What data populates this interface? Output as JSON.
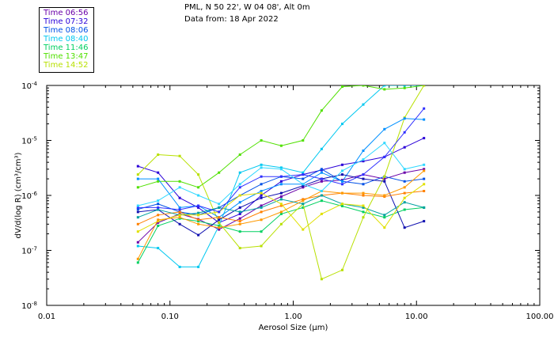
{
  "header": {
    "station": "PML, N 50 22', W 04 08', Alt 0m",
    "date_line": "Data from: 18 Apr 2022"
  },
  "chart_data": {
    "type": "line",
    "title": "PML, N 50 22', W 04 08', Alt 0m",
    "subtitle": "Data from: 18 Apr 2022",
    "xlabel": "Aerosol Size (µm)",
    "ylabel": "dV/d(log R) (cm³/cm³)",
    "xscale": "log",
    "yscale": "log",
    "xlim": [
      0.01,
      100
    ],
    "ylim": [
      1e-08,
      0.0001
    ],
    "legend_position": "top-left outside",
    "x_ticks": [
      {
        "value": 0.01,
        "label": "0.01"
      },
      {
        "value": 0.1,
        "label": "0.10"
      },
      {
        "value": 1,
        "label": "1.00"
      },
      {
        "value": 10,
        "label": "10.00"
      },
      {
        "value": 100,
        "label": "100.00"
      }
    ],
    "y_ticks": [
      {
        "value": 0.0001,
        "base": "10",
        "exp": "-4"
      },
      {
        "value": 1e-05,
        "base": "10",
        "exp": "-5"
      },
      {
        "value": 1e-06,
        "base": "10",
        "exp": "-6"
      },
      {
        "value": 1e-07,
        "base": "10",
        "exp": "-7"
      },
      {
        "value": 1e-08,
        "base": "10",
        "exp": "-8"
      }
    ],
    "x": [
      0.055,
      0.08,
      0.12,
      0.17,
      0.25,
      0.37,
      0.55,
      0.8,
      1.2,
      1.7,
      2.5,
      3.7,
      5.5,
      8.0,
      11.5
    ],
    "series": [
      {
        "name": "Time 06:56",
        "color": "#6a00a8",
        "values": [
          1.4e-07,
          3.2e-07,
          4.6e-07,
          3.7e-07,
          2.4e-07,
          3.8e-07,
          6.5e-07,
          9.5e-07,
          1.4e-06,
          1.8e-06,
          1.9e-06,
          2.4e-06,
          2e-06,
          2.6e-06,
          3e-06
        ]
      },
      {
        "name": "Time 07:32",
        "color": "#2a00d8",
        "values": [
          3.4e-06,
          2.6e-06,
          9e-07,
          6e-07,
          3.2e-07,
          4.6e-07,
          1e-06,
          1.8e-06,
          2.4e-06,
          2.9e-06,
          3.6e-06,
          4.2e-06,
          5e-06,
          7.5e-06,
          1.1e-05
        ]
      },
      {
        "name": "Time 08:06",
        "color": "#0050e6",
        "values": [
          5.6e-07,
          7e-07,
          5e-07,
          4.4e-07,
          6e-07,
          1e-06,
          1.6e-06,
          2.2e-06,
          2e-06,
          3e-06,
          1.8e-06,
          1.6e-06,
          2.2e-06,
          1.8e-06,
          2e-06
        ]
      },
      {
        "name": "Time 08:40",
        "color": "#00c8f0",
        "values": [
          1.2e-07,
          1.1e-07,
          5e-08,
          5e-08,
          2.8e-07,
          2.6e-06,
          3.6e-06,
          3.2e-06,
          2.6e-06,
          7e-06,
          2e-05,
          4.5e-05,
          0.0001,
          0.0001,
          0.0001
        ]
      },
      {
        "name": "Time 11:46",
        "color": "#00d060",
        "values": [
          6e-08,
          2.8e-07,
          3.8e-07,
          3.4e-07,
          2.8e-07,
          2.2e-07,
          2.2e-07,
          4.6e-07,
          6e-07,
          8e-07,
          6.4e-07,
          5e-07,
          4e-07,
          5.5e-07,
          6e-07
        ]
      },
      {
        "name": "Time 13:47",
        "color": "#50e000",
        "values": [
          1.4e-06,
          1.8e-06,
          1.8e-06,
          1.4e-06,
          2.6e-06,
          5.5e-06,
          1e-05,
          8e-06,
          1e-05,
          3.5e-05,
          9.5e-05,
          0.0001,
          8.5e-05,
          9e-05,
          0.0001
        ]
      },
      {
        "name": "Time 14:52",
        "color": "#b8e000",
        "values": [
          2.4e-06,
          5.5e-06,
          5.2e-06,
          2.4e-06,
          3.2e-07,
          1.1e-07,
          1.2e-07,
          3e-07,
          7e-07,
          3e-08,
          4.4e-08,
          4e-07,
          2.2e-06,
          2.6e-05,
          0.0001
        ]
      },
      {
        "name": "",
        "color": "#0090ff",
        "values": [
          2e-06,
          2e-06,
          6e-07,
          6.5e-07,
          4e-07,
          7.5e-07,
          1.2e-06,
          1.6e-06,
          1.6e-06,
          2.6e-06,
          1.8e-06,
          6.5e-06,
          1.6e-05,
          2.5e-05,
          2.4e-05
        ]
      },
      {
        "name": "",
        "color": "#1010b0",
        "values": [
          5e-07,
          5.5e-07,
          3e-07,
          1.9e-07,
          3.6e-07,
          6e-07,
          9e-07,
          1.1e-06,
          1.5e-06,
          2e-06,
          2.4e-06,
          2e-06,
          1.8e-06,
          2.6e-07,
          3.4e-07
        ]
      },
      {
        "name": "",
        "color": "#ff8000",
        "values": [
          3e-07,
          4.4e-07,
          5e-07,
          3.6e-07,
          4e-07,
          3.4e-07,
          5e-07,
          6.5e-07,
          8.5e-07,
          1e-06,
          1.1e-06,
          1e-06,
          9.5e-07,
          1.1e-06,
          1.2e-06
        ]
      },
      {
        "name": "",
        "color": "#00a0a0",
        "values": [
          4e-07,
          5.5e-07,
          4.4e-07,
          4.8e-07,
          6e-07,
          5e-07,
          6e-07,
          8.5e-07,
          7e-07,
          1e-06,
          7e-07,
          6e-07,
          4.4e-07,
          7.5e-07,
          6e-07
        ]
      },
      {
        "name": "",
        "color": "#e0e000",
        "values": [
          2.2e-07,
          3.4e-07,
          4.4e-07,
          4.4e-07,
          5e-07,
          1e-06,
          1.1e-06,
          7e-07,
          2.4e-07,
          4.6e-07,
          7e-07,
          6.5e-07,
          2.6e-07,
          9e-07,
          1.6e-06
        ]
      },
      {
        "name": "",
        "color": "#3030ff",
        "values": [
          6e-07,
          6e-07,
          5.5e-07,
          6.5e-07,
          5e-07,
          1.4e-06,
          2.2e-06,
          2.2e-06,
          2.4e-06,
          2e-06,
          1.6e-06,
          2.4e-06,
          5e-06,
          1.4e-05,
          3.8e-05
        ]
      },
      {
        "name": "",
        "color": "#ff9900",
        "values": [
          7e-08,
          3.6e-07,
          4e-07,
          3e-07,
          2.6e-07,
          3e-07,
          3.6e-07,
          5e-07,
          8e-07,
          1.2e-06,
          1.1e-06,
          1.1e-06,
          1e-06,
          1.4e-06,
          2.8e-06
        ]
      },
      {
        "name": "",
        "color": "#30d8ff",
        "values": [
          6.5e-07,
          8e-07,
          1.4e-06,
          1e-06,
          7e-07,
          1.6e-06,
          3.2e-06,
          3e-06,
          1.6e-06,
          1.2e-06,
          2.8e-06,
          4.5e-06,
          9e-06,
          3e-06,
          3.6e-06
        ]
      }
    ]
  }
}
